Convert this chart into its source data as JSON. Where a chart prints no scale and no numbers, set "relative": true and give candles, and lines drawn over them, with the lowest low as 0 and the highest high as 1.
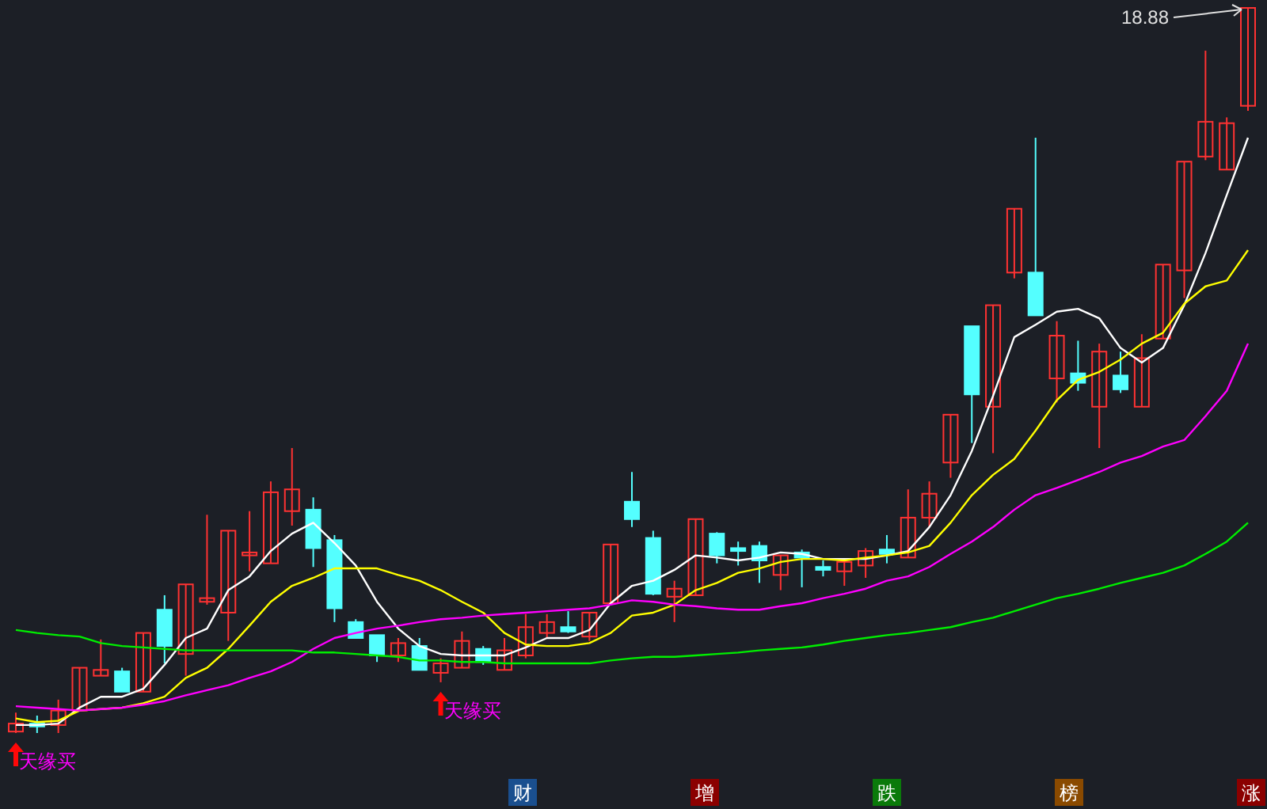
{
  "chart_data": {
    "type": "candlestick",
    "relative": true,
    "categories": [
      null,
      null,
      null,
      null,
      null,
      null,
      null,
      null,
      null,
      null,
      null,
      null,
      null,
      null,
      null,
      null,
      null,
      null,
      null,
      null,
      null,
      null,
      null,
      null,
      null,
      null,
      null,
      null,
      null,
      null,
      null,
      null,
      null,
      null,
      null,
      null,
      null,
      null,
      null,
      null,
      null,
      null,
      null,
      null,
      null,
      null,
      null,
      null,
      null,
      null,
      null,
      null,
      null,
      null,
      null,
      null,
      null,
      null,
      null
    ],
    "ohlc": [
      [
        0.002,
        0.028,
        0,
        0.013
      ],
      [
        0.013,
        0.024,
        0,
        0.009
      ],
      [
        0.011,
        0.046,
        0,
        0.031
      ],
      [
        0.031,
        0.09,
        0.031,
        0.09
      ],
      [
        0.079,
        0.129,
        0.079,
        0.087
      ],
      [
        0.085,
        0.09,
        0.057,
        0.057
      ],
      [
        0.057,
        0.138,
        0.057,
        0.138
      ],
      [
        0.17,
        0.19,
        0.096,
        0.12
      ],
      [
        0.109,
        0.205,
        0.079,
        0.205
      ],
      [
        0.181,
        0.301,
        0.177,
        0.186
      ],
      [
        0.166,
        0.279,
        0.127,
        0.279
      ],
      [
        0.245,
        0.306,
        0.223,
        0.249
      ],
      [
        0.234,
        0.347,
        0.234,
        0.332
      ],
      [
        0.306,
        0.393,
        0.286,
        0.336
      ],
      [
        0.308,
        0.325,
        0.229,
        0.255
      ],
      [
        0.266,
        0.273,
        0.153,
        0.172
      ],
      [
        0.153,
        0.157,
        0.131,
        0.131
      ],
      [
        0.135,
        0.135,
        0.098,
        0.107
      ],
      [
        0.107,
        0.131,
        0.098,
        0.124
      ],
      [
        0.12,
        0.131,
        0.087,
        0.087
      ],
      [
        0.083,
        0.103,
        0.07,
        0.096
      ],
      [
        0.09,
        0.14,
        0.09,
        0.127
      ],
      [
        0.116,
        0.12,
        0.094,
        0.098
      ],
      [
        0.087,
        0.131,
        0.087,
        0.114
      ],
      [
        0.107,
        0.164,
        0.103,
        0.146
      ],
      [
        0.138,
        0.164,
        0.131,
        0.153
      ],
      [
        0.146,
        0.168,
        0.138,
        0.14
      ],
      [
        0.133,
        0.166,
        0.127,
        0.166
      ],
      [
        0.179,
        0.26,
        0.179,
        0.26
      ],
      [
        0.319,
        0.36,
        0.284,
        0.295
      ],
      [
        0.269,
        0.279,
        0.19,
        0.192
      ],
      [
        0.188,
        0.21,
        0.153,
        0.199
      ],
      [
        0.19,
        0.295,
        0.19,
        0.295
      ],
      [
        0.275,
        0.277,
        0.234,
        0.245
      ],
      [
        0.255,
        0.264,
        0.231,
        0.251
      ],
      [
        0.258,
        0.264,
        0.207,
        0.238
      ],
      [
        0.218,
        0.245,
        0.197,
        0.245
      ],
      [
        0.249,
        0.253,
        0.201,
        0.242
      ],
      [
        0.229,
        0.238,
        0.216,
        0.225
      ],
      [
        0.223,
        0.24,
        0.203,
        0.236
      ],
      [
        0.231,
        0.255,
        0.214,
        0.251
      ],
      [
        0.253,
        0.273,
        0.234,
        0.247
      ],
      [
        0.242,
        0.336,
        0.242,
        0.297
      ],
      [
        0.297,
        0.347,
        0.284,
        0.33
      ],
      [
        0.373,
        0.439,
        0.352,
        0.439
      ],
      [
        0.561,
        0.561,
        0.4,
        0.467
      ],
      [
        0.45,
        0.59,
        0.386,
        0.59
      ],
      [
        0.635,
        0.723,
        0.627,
        0.723
      ],
      [
        0.635,
        0.821,
        0.576,
        0.576
      ],
      [
        0.489,
        0.568,
        0.456,
        0.548
      ],
      [
        0.496,
        0.541,
        0.472,
        0.483
      ],
      [
        0.45,
        0.537,
        0.393,
        0.526
      ],
      [
        0.493,
        0.526,
        0.469,
        0.474
      ],
      [
        0.45,
        0.55,
        0.45,
        0.517
      ],
      [
        0.544,
        0.646,
        0.544,
        0.646
      ],
      [
        0.638,
        0.788,
        0.6,
        0.788
      ],
      [
        0.795,
        0.941,
        0.79,
        0.843
      ],
      [
        0.777,
        0.849,
        0.777,
        0.841
      ],
      [
        0.865,
        1,
        0.858,
        1
      ]
    ],
    "colors": [
      "#ff3232",
      "#54ffff",
      "#ff3232",
      "#ff3232",
      "#ff3232",
      "#54ffff",
      "#ff3232",
      "#54ffff",
      "#ff3232",
      "#ff3232",
      "#ff3232",
      "#ff3232",
      "#ff3232",
      "#ff3232",
      "#54ffff",
      "#54ffff",
      "#54ffff",
      "#54ffff",
      "#ff3232",
      "#54ffff",
      "#ff3232",
      "#ff3232",
      "#54ffff",
      "#ff3232",
      "#ff3232",
      "#ff3232",
      "#54ffff",
      "#ff3232",
      "#ff3232",
      "#54ffff",
      "#54ffff",
      "#ff3232",
      "#ff3232",
      "#54ffff",
      "#54ffff",
      "#54ffff",
      "#ff3232",
      "#54ffff",
      "#54ffff",
      "#ff3232",
      "#ff3232",
      "#54ffff",
      "#ff3232",
      "#ff3232",
      "#ff3232",
      "#54ffff",
      "#ff3232",
      "#ff3232",
      "#54ffff",
      "#ff3232",
      "#54ffff",
      "#ff3232",
      "#54ffff",
      "#ff3232",
      "#ff3232",
      "#ff3232",
      "#ff3232",
      "#ff3232",
      "#ff3232"
    ],
    "series": [
      {
        "type": "line",
        "color": "#ffffff",
        "values": [
          0.011,
          0.011,
          0.013,
          0.035,
          0.05,
          0.05,
          0.061,
          0.094,
          0.131,
          0.144,
          0.197,
          0.216,
          0.251,
          0.275,
          0.29,
          0.262,
          0.231,
          0.181,
          0.144,
          0.12,
          0.109,
          0.107,
          0.107,
          0.107,
          0.118,
          0.131,
          0.131,
          0.142,
          0.179,
          0.203,
          0.21,
          0.225,
          0.245,
          0.242,
          0.238,
          0.242,
          0.249,
          0.247,
          0.24,
          0.24,
          0.24,
          0.245,
          0.251,
          0.284,
          0.328,
          0.389,
          0.465,
          0.546,
          0.563,
          0.581,
          0.585,
          0.572,
          0.531,
          0.511,
          0.531,
          0.59,
          0.662,
          0.742,
          0.821
        ]
      },
      {
        "type": "line",
        "color": "#ffff00",
        "values": [
          0.02,
          0.015,
          0.017,
          0.031,
          0.033,
          0.035,
          0.041,
          0.05,
          0.076,
          0.09,
          0.116,
          0.148,
          0.181,
          0.203,
          0.214,
          0.227,
          0.227,
          0.227,
          0.218,
          0.21,
          0.197,
          0.181,
          0.166,
          0.138,
          0.122,
          0.12,
          0.12,
          0.124,
          0.138,
          0.162,
          0.166,
          0.177,
          0.197,
          0.207,
          0.221,
          0.227,
          0.236,
          0.24,
          0.24,
          0.238,
          0.242,
          0.245,
          0.249,
          0.258,
          0.29,
          0.328,
          0.356,
          0.378,
          0.417,
          0.459,
          0.487,
          0.498,
          0.515,
          0.537,
          0.552,
          0.592,
          0.616,
          0.624,
          0.666
        ]
      },
      {
        "type": "line",
        "color": "#ff00ff",
        "values": [
          0.037,
          0.035,
          0.033,
          0.031,
          0.033,
          0.035,
          0.039,
          0.044,
          0.052,
          0.059,
          0.066,
          0.076,
          0.085,
          0.098,
          0.116,
          0.131,
          0.138,
          0.144,
          0.148,
          0.153,
          0.157,
          0.159,
          0.162,
          0.164,
          0.166,
          0.168,
          0.17,
          0.172,
          0.177,
          0.183,
          0.181,
          0.177,
          0.175,
          0.172,
          0.17,
          0.17,
          0.175,
          0.179,
          0.186,
          0.192,
          0.199,
          0.21,
          0.216,
          0.229,
          0.247,
          0.264,
          0.284,
          0.308,
          0.328,
          0.338,
          0.349,
          0.36,
          0.373,
          0.382,
          0.395,
          0.404,
          0.437,
          0.472,
          0.537
        ]
      },
      {
        "type": "line",
        "color": "#00ee00",
        "values": [
          0.142,
          0.138,
          0.135,
          0.133,
          0.124,
          0.12,
          0.118,
          0.116,
          0.114,
          0.114,
          0.114,
          0.114,
          0.114,
          0.114,
          0.111,
          0.111,
          0.109,
          0.107,
          0.105,
          0.1,
          0.1,
          0.098,
          0.098,
          0.096,
          0.096,
          0.096,
          0.096,
          0.096,
          0.1,
          0.103,
          0.105,
          0.105,
          0.107,
          0.109,
          0.111,
          0.114,
          0.116,
          0.118,
          0.122,
          0.127,
          0.131,
          0.135,
          0.138,
          0.142,
          0.146,
          0.153,
          0.159,
          0.168,
          0.177,
          0.186,
          0.192,
          0.199,
          0.207,
          0.214,
          0.221,
          0.231,
          0.247,
          0.264,
          0.29
        ]
      }
    ],
    "annotations": [
      "18.88",
      "天缘买",
      "天缘买",
      "财",
      "增",
      "跌",
      "榜",
      "涨"
    ]
  }
}
